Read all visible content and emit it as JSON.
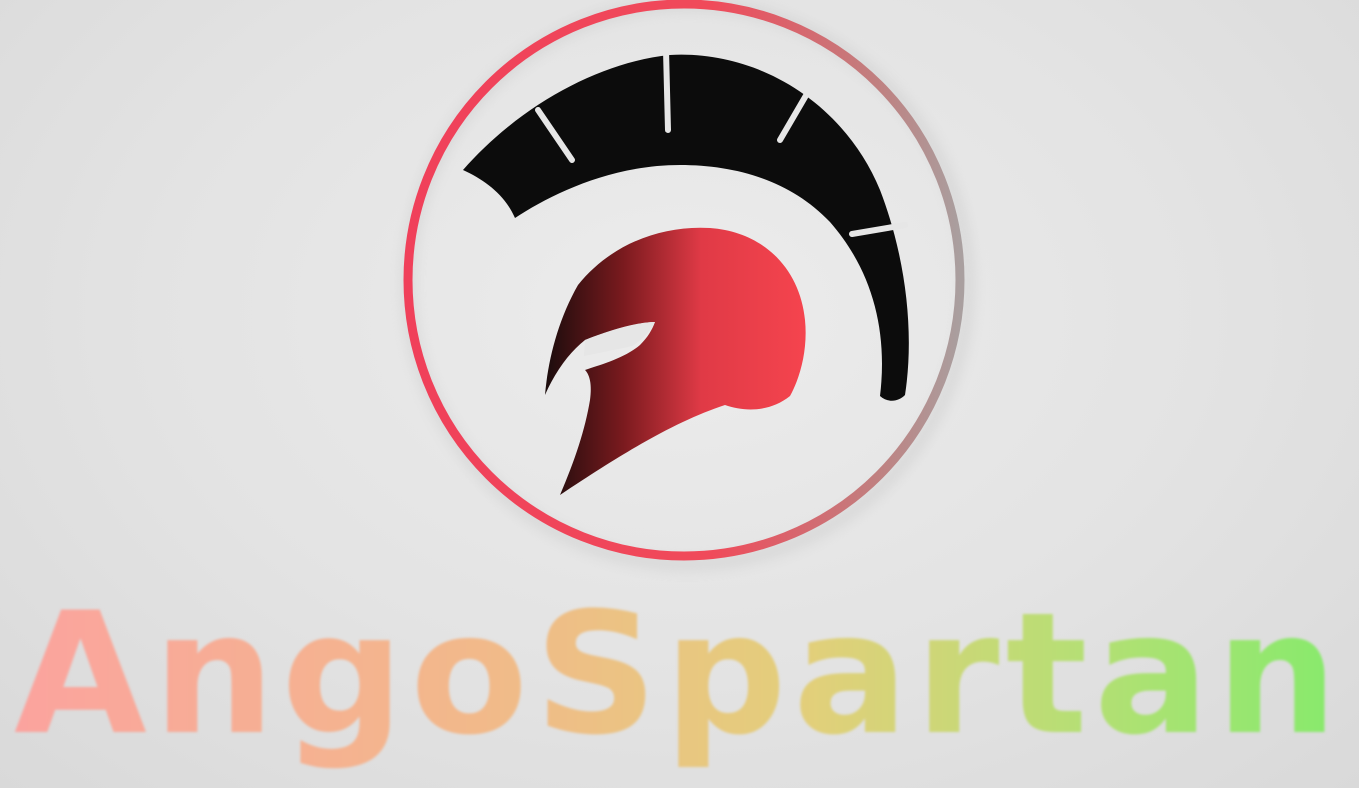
{
  "brand": {
    "name": "AngoSpartan"
  },
  "colors": {
    "background": "#e6e6e6",
    "ring_start": "#f0405a",
    "ring_end": "#a99f9f",
    "crest": "#0c0c0c",
    "helmet_light": "#f0404e",
    "helmet_dark": "#1a0c0c",
    "word_start": "#fba39e",
    "word_mid": "#f0c87e",
    "word_end": "#86ea6c"
  },
  "icons": {
    "emblem": "spartan-helmet-icon"
  }
}
